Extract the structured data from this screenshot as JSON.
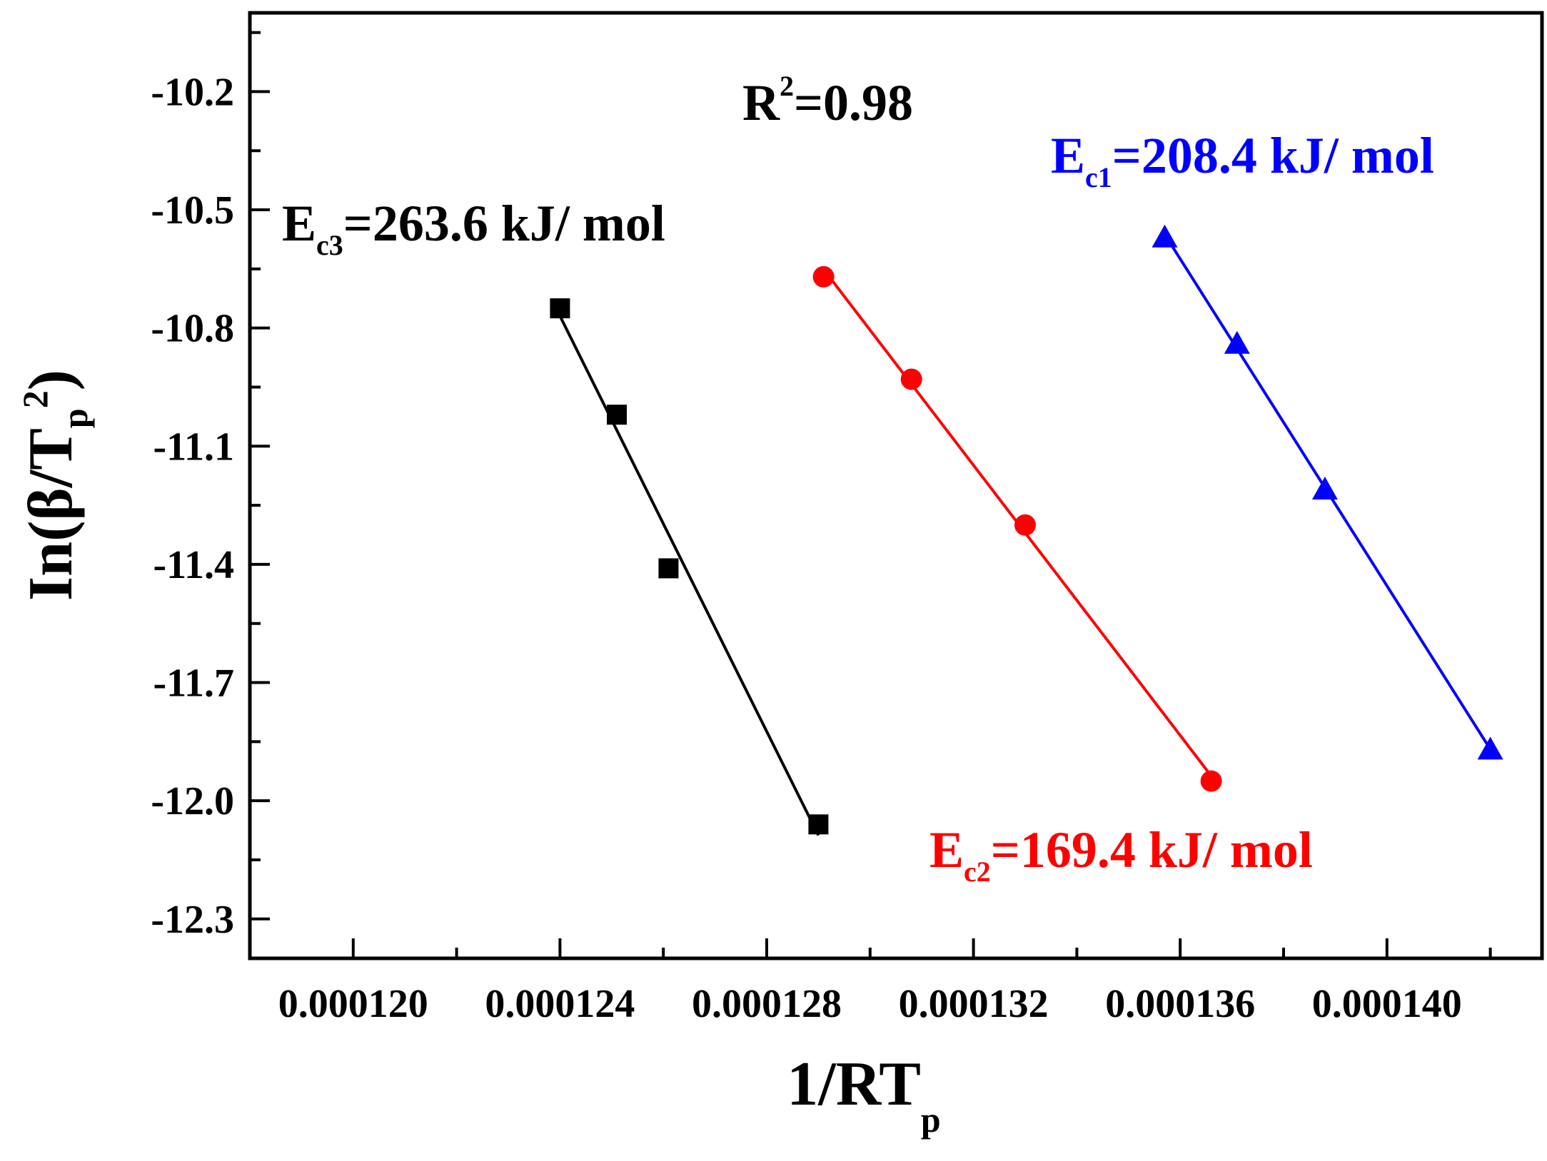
{
  "chart_data": {
    "type": "scatter",
    "xlabel": "1/RT",
    "xlabel_sub": "p",
    "ylabel_prefix": "In(β/T",
    "ylabel_sub": "p",
    "ylabel_sup": "2",
    "ylabel_suffix": ")",
    "xlim": [
      0.000118,
      0.000143
    ],
    "ylim": [
      -12.4,
      -10.0
    ],
    "x_ticks": [
      0.00012,
      0.000124,
      0.000128,
      0.000132,
      0.000136,
      0.00014
    ],
    "x_tick_labels": [
      "0.000120",
      "0.000124",
      "0.000128",
      "0.000132",
      "0.000136",
      "0.000140"
    ],
    "y_ticks": [
      -10.2,
      -10.5,
      -10.8,
      -11.1,
      -11.4,
      -11.7,
      -12.0,
      -12.3
    ],
    "y_tick_labels": [
      "-10.2",
      "-10.5",
      "-10.8",
      "-11.1",
      "-11.4",
      "-11.7",
      "-12.0",
      "-12.3"
    ],
    "series": [
      {
        "name": "Ec3",
        "color": "#000000",
        "marker": "square",
        "x": [
          0.000124,
          0.0001251,
          0.0001261,
          0.000129
        ],
        "y": [
          -10.75,
          -11.02,
          -11.41,
          -12.06
        ]
      },
      {
        "name": "Ec2",
        "color": "#ff0000",
        "marker": "circle",
        "x": [
          0.0001291,
          0.0001308,
          0.000133,
          0.0001366
        ],
        "y": [
          -10.67,
          -10.93,
          -11.3,
          -11.95
        ]
      },
      {
        "name": "Ec1",
        "color": "#0000ff",
        "marker": "triangle",
        "x": [
          0.0001357,
          0.0001371,
          0.0001388,
          0.000142
        ],
        "y": [
          -10.57,
          -10.84,
          -11.21,
          -11.87
        ]
      }
    ],
    "annotations": [
      {
        "id": "r2",
        "main": "R",
        "sup": "2",
        "rest": "=0.98",
        "color": "#000000"
      },
      {
        "id": "ec1",
        "main": "E",
        "sub": "c1",
        "rest": "=208.4 kJ/ mol",
        "color": "#0000ff"
      },
      {
        "id": "ec2",
        "main": "E",
        "sub": "c2",
        "rest": "=169.4 kJ/ mol",
        "color": "#ff0000"
      },
      {
        "id": "ec3",
        "main": "E",
        "sub": "c3",
        "rest": "=263.6 kJ/ mol",
        "color": "#000000"
      }
    ]
  }
}
